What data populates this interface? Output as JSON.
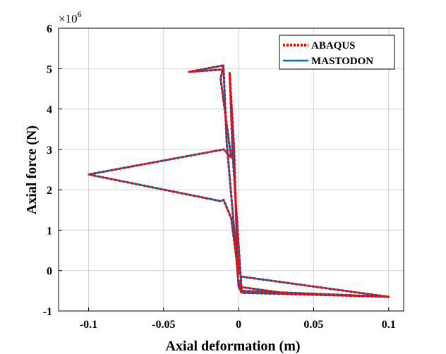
{
  "chart_data": {
    "type": "line",
    "title": "",
    "xlabel": "Axial deformation (m)",
    "ylabel": "Axial force (N)",
    "xlim": [
      -0.12,
      0.11
    ],
    "ylim": [
      -1,
      6
    ],
    "y_exponent_label": "×10",
    "y_exponent_power": "6",
    "grid": true,
    "legend_position": "top-right",
    "x_ticks": [
      {
        "value": -0.1,
        "label": "-0.1"
      },
      {
        "value": -0.05,
        "label": "-0.05"
      },
      {
        "value": 0,
        "label": "0"
      },
      {
        "value": 0.05,
        "label": "0.05"
      },
      {
        "value": 0.1,
        "label": "0.1"
      }
    ],
    "y_ticks": [
      {
        "value": -1,
        "label": "-1"
      },
      {
        "value": 0,
        "label": "0"
      },
      {
        "value": 1,
        "label": "1"
      },
      {
        "value": 2,
        "label": "2"
      },
      {
        "value": 3,
        "label": "3"
      },
      {
        "value": 4,
        "label": "4"
      },
      {
        "value": 5,
        "label": "5"
      },
      {
        "value": 6,
        "label": "6"
      }
    ],
    "series": [
      {
        "name": "ABAQUS",
        "color": "#ff0000",
        "style": "dotted",
        "x": [
          0.0,
          -0.005,
          -0.01,
          -0.012,
          -0.1,
          -0.01,
          -0.005,
          -0.012,
          -0.01,
          -0.033,
          -0.01,
          -0.008,
          -0.002,
          0.0,
          0.002,
          0.1,
          0.002,
          0.0,
          0.035,
          0.1,
          0.002,
          -0.001,
          -0.004,
          -0.006,
          -0.003,
          -0.001,
          0.0
        ],
        "y": [
          -0.1,
          1.3,
          1.75,
          1.72,
          2.38,
          3.0,
          2.8,
          4.75,
          5.08,
          4.92,
          4.98,
          3.2,
          0.6,
          -0.4,
          -0.15,
          -0.65,
          -0.55,
          -0.4,
          -0.58,
          -0.65,
          -0.5,
          1.2,
          2.9,
          4.9,
          3.0,
          0.4,
          -0.1
        ]
      },
      {
        "name": "MASTODON",
        "color": "#0072bd",
        "style": "solid",
        "x": [
          0.0,
          -0.005,
          -0.01,
          -0.012,
          -0.1,
          -0.01,
          -0.005,
          -0.012,
          -0.01,
          -0.033,
          -0.01,
          -0.008,
          -0.002,
          0.0,
          0.002,
          0.1,
          0.002,
          0.0,
          0.035,
          0.1,
          0.002,
          -0.001,
          -0.004,
          -0.006,
          -0.003,
          -0.001,
          0.0
        ],
        "y": [
          -0.1,
          1.3,
          1.75,
          1.72,
          2.38,
          3.0,
          2.8,
          4.75,
          5.08,
          4.92,
          4.98,
          3.2,
          0.6,
          -0.4,
          -0.15,
          -0.65,
          -0.55,
          -0.4,
          -0.58,
          -0.65,
          -0.5,
          1.2,
          2.9,
          4.9,
          3.0,
          0.4,
          -0.1
        ]
      }
    ]
  }
}
